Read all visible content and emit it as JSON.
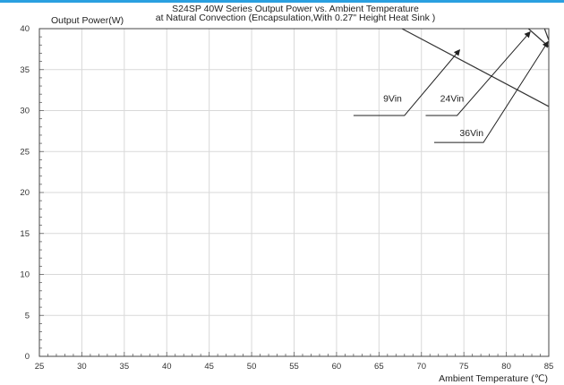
{
  "chart_data": {
    "type": "line",
    "title": "S24SP 40W Series Output Power vs. Ambient Temperature",
    "subtitle": "at Natural Convection (Encapsulation,With 0.27\" Height Heat Sink )",
    "xlabel": "Ambient Temperature (℃)",
    "ylabel": "Output Power(W)",
    "xlim": [
      25,
      85
    ],
    "ylim": [
      0,
      40
    ],
    "xticks": [
      25,
      30,
      35,
      40,
      45,
      50,
      55,
      60,
      65,
      70,
      75,
      80,
      85
    ],
    "yticks": [
      0,
      5,
      10,
      15,
      20,
      25,
      30,
      35,
      40
    ],
    "grid": true,
    "series": [
      {
        "name": "9Vin",
        "x": [
          67.7,
          85
        ],
        "y": [
          40,
          30.5
        ]
      },
      {
        "name": "24Vin",
        "x": [
          82.6,
          85
        ],
        "y": [
          40,
          37.8
        ]
      },
      {
        "name": "36Vin",
        "x": [
          84.5,
          85
        ],
        "y": [
          40,
          38.6
        ]
      }
    ],
    "annotations": [
      {
        "text": "9Vin",
        "series": "9Vin"
      },
      {
        "text": "24Vin",
        "series": "24Vin"
      },
      {
        "text": "36Vin",
        "series": "36Vin"
      }
    ],
    "colors": {
      "line": "#333333",
      "grid": "#d9d9d9",
      "axis": "#444444",
      "top_bar": "#2aa0e0"
    }
  }
}
